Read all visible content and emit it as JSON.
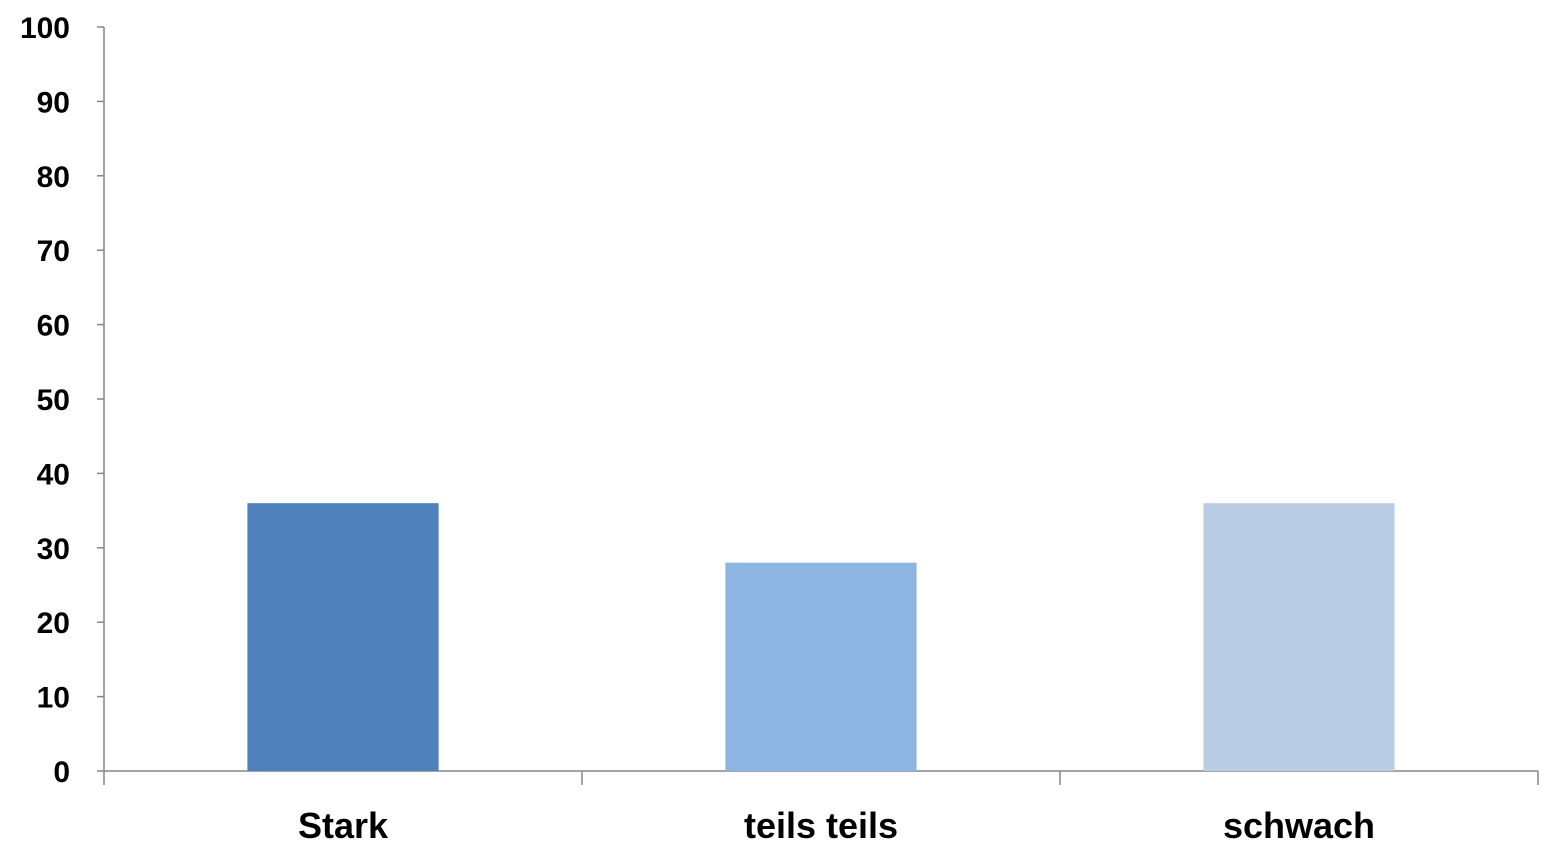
{
  "chart_data": {
    "type": "bar",
    "title": "",
    "xlabel": "",
    "ylabel": "",
    "categories": [
      "Stark",
      "teils teils",
      "schwach"
    ],
    "values": [
      36,
      28,
      36
    ],
    "bar_colors": [
      "#4f81bd",
      "#8eb4e3",
      "#b9cde5"
    ],
    "ylim": [
      0,
      100
    ],
    "y_ticks": [
      0,
      10,
      20,
      30,
      40,
      50,
      60,
      70,
      80,
      90,
      100
    ],
    "grid": false,
    "legend": "none"
  }
}
